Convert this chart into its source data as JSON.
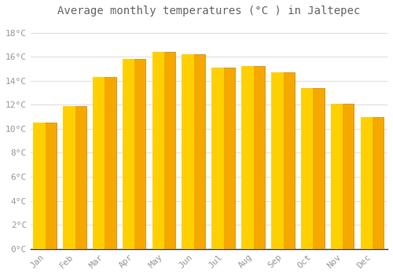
{
  "title": "Average monthly temperatures (°C ) in Jaltepec",
  "months": [
    "Jan",
    "Feb",
    "Mar",
    "Apr",
    "May",
    "Jun",
    "Jul",
    "Aug",
    "Sep",
    "Oct",
    "Nov",
    "Dec"
  ],
  "values": [
    10.5,
    11.9,
    14.3,
    15.8,
    16.4,
    16.2,
    15.1,
    15.2,
    14.7,
    13.4,
    12.1,
    11.0
  ],
  "bar_color_center": "#FFD000",
  "bar_color_edge": "#F5A800",
  "bar_color_dark_edge": "#E08800",
  "background_color": "#FFFFFF",
  "grid_color": "#E0E0E0",
  "title_color": "#666666",
  "tick_label_color": "#999999",
  "ylim": [
    0,
    19
  ],
  "yticks": [
    0,
    2,
    4,
    6,
    8,
    10,
    12,
    14,
    16,
    18
  ],
  "ytick_labels": [
    "0°C",
    "2°C",
    "4°C",
    "6°C",
    "8°C",
    "10°C",
    "12°C",
    "14°C",
    "16°C",
    "18°C"
  ],
  "title_fontsize": 10,
  "tick_fontsize": 8,
  "bar_width": 0.75
}
